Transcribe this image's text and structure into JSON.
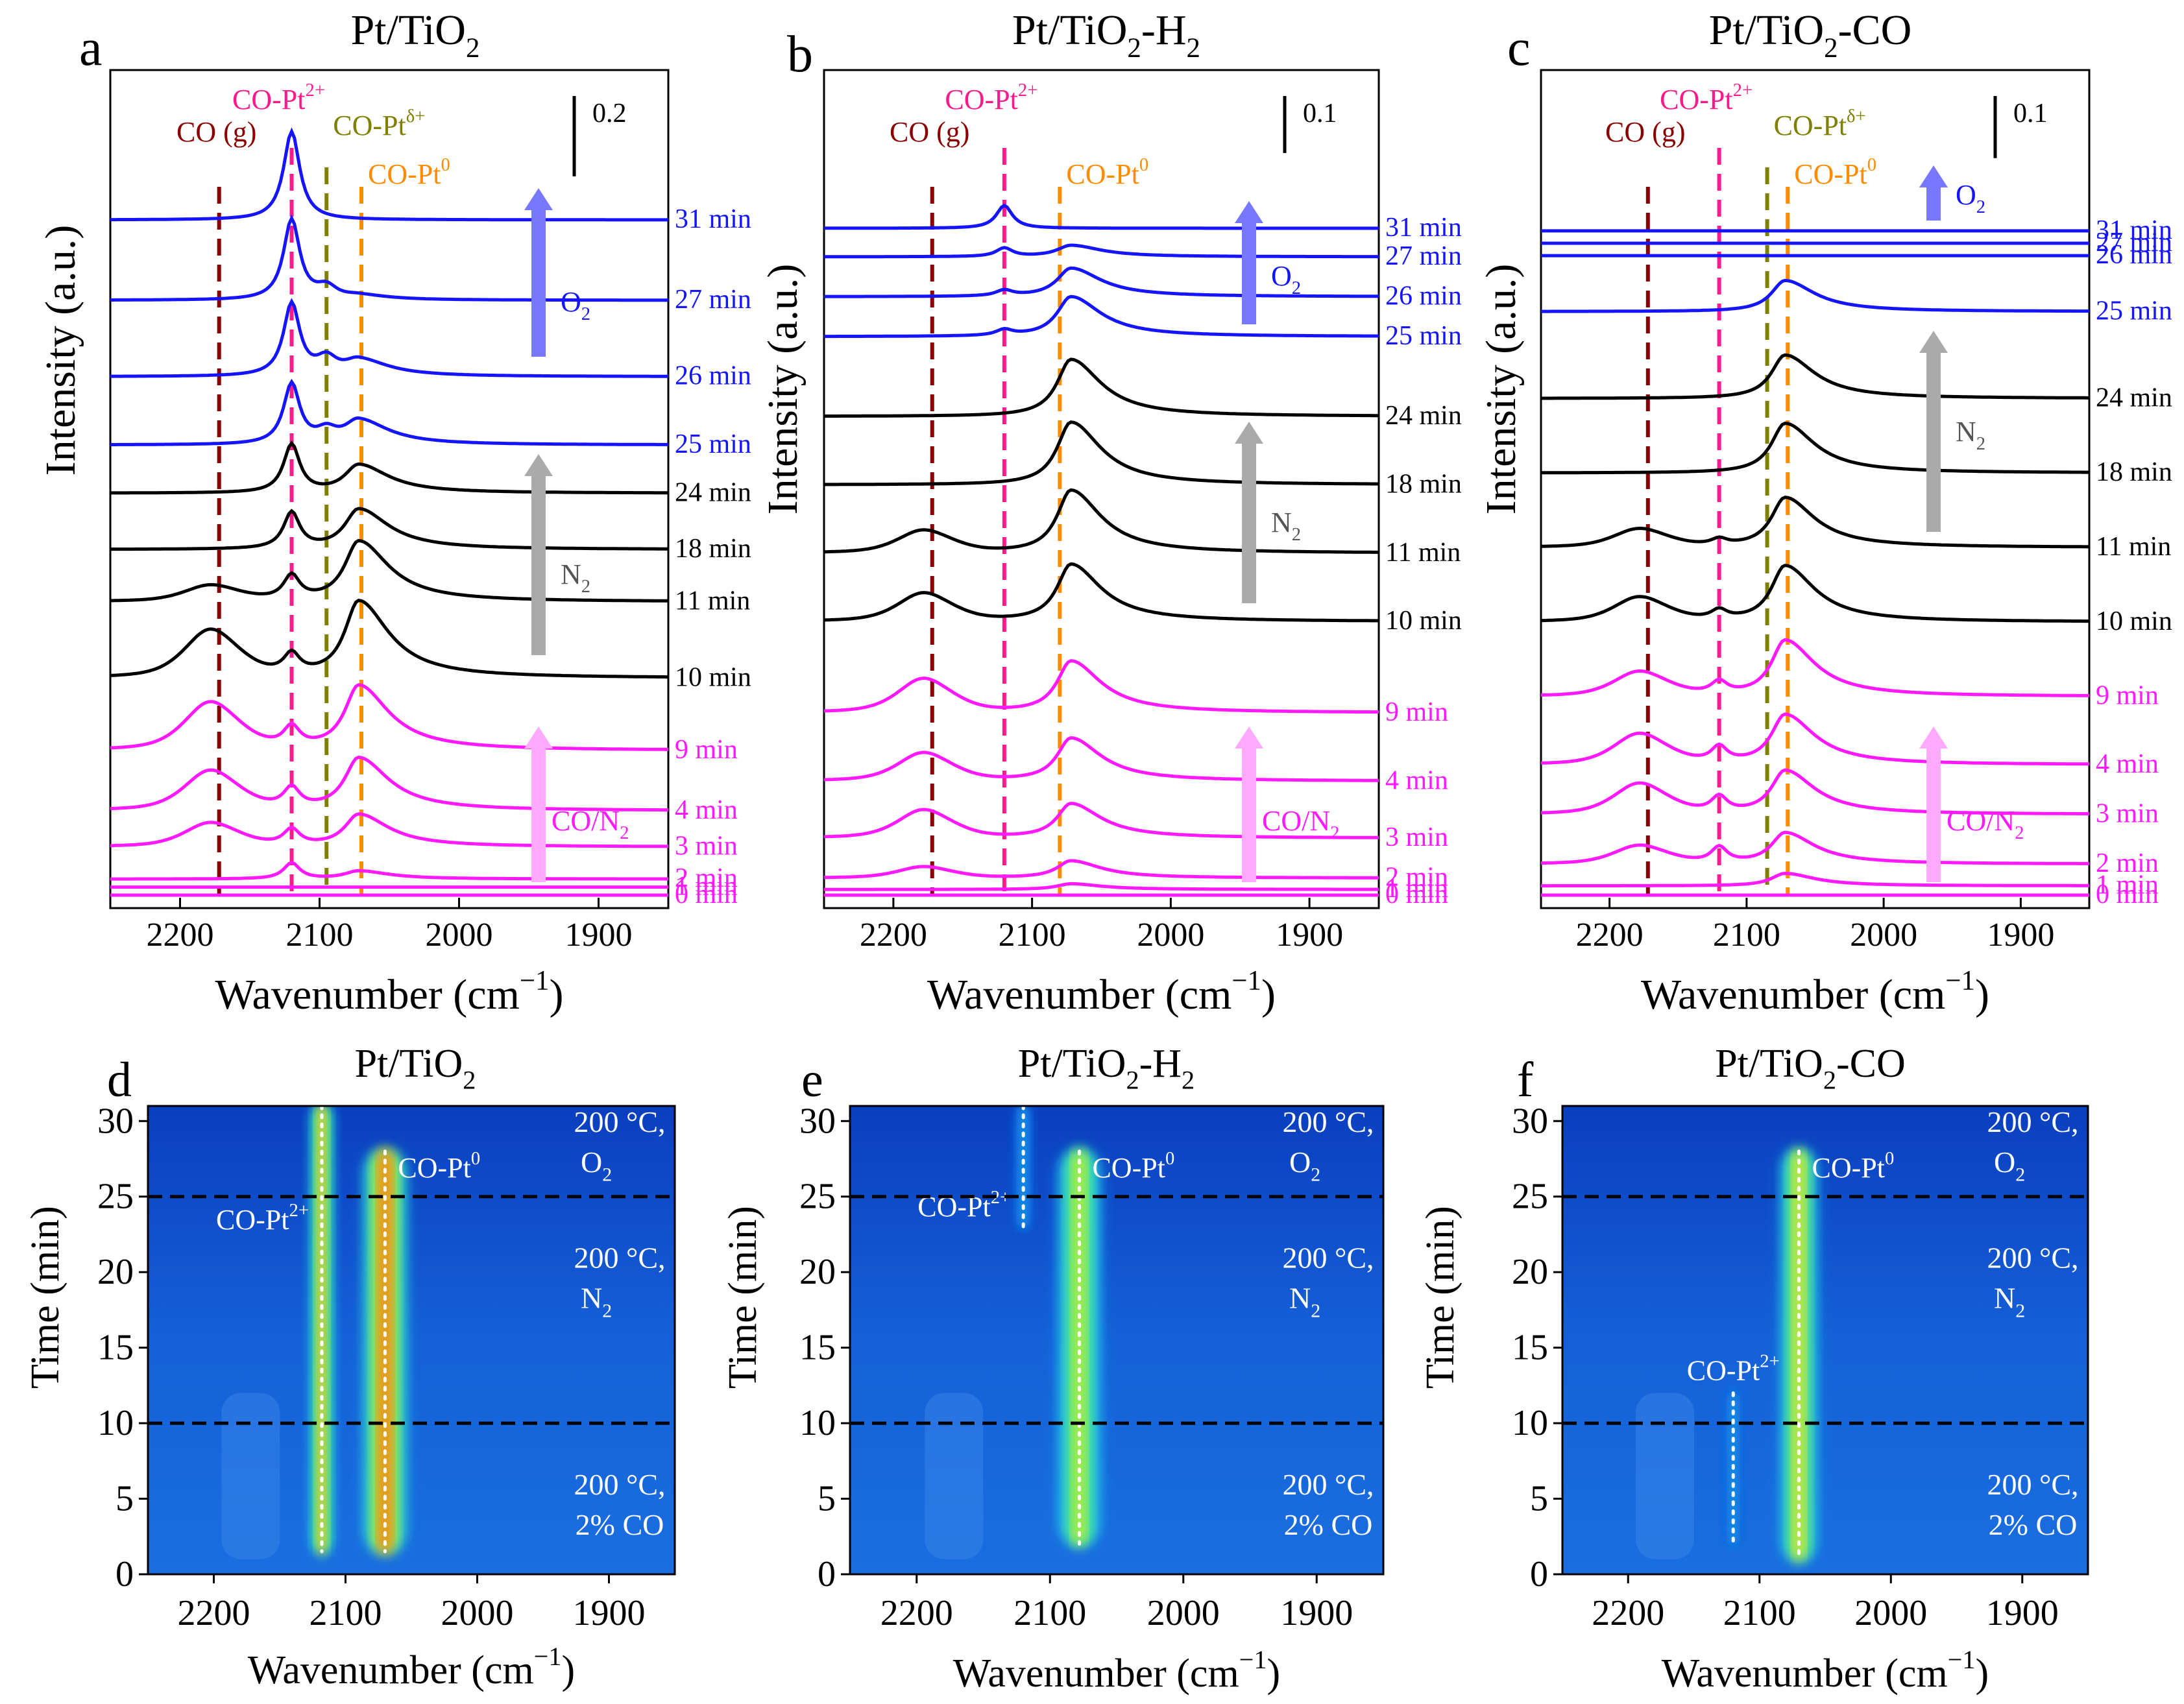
{
  "figure": {
    "xlabel_html": [
      "Wavenumber (cm",
      "−1",
      ")"
    ],
    "ylabel_top": "Intensity (a.u.)",
    "ylabel_bottom": "Time (min)"
  },
  "colors": {
    "co_n2": "#ff19ff",
    "n2": "#000000",
    "o2": "#1414ff",
    "co_gas": "#8b0000",
    "co_pt2": "#ff1a8c",
    "co_ptd": "#808000",
    "co_pt0": "#ff8c00",
    "arrow_co": "#ffaaff",
    "arrow_n2": "#aaaaaa",
    "arrow_o2": "#7777ff"
  },
  "chart_data": [
    {
      "type": "line",
      "panel": "a",
      "title": "Pt/TiO2",
      "xlabel": "Wavenumber (cm−1)",
      "ylabel": "Intensity (a.u.)",
      "xlim": [
        2250,
        1850
      ],
      "xticks": [
        2200,
        2100,
        2000,
        1900
      ],
      "scale_bar": "0.2",
      "scale_bar_value": 0.2,
      "markers": [
        {
          "label": "CO (g)",
          "x": 2172,
          "color": "#8b0000"
        },
        {
          "label": "CO-Pt2+",
          "x": 2120,
          "color": "#ff1a8c"
        },
        {
          "label": "CO-Ptδ+",
          "x": 2095,
          "color": "#808000"
        },
        {
          "label": "CO-Pt0",
          "x": 2070,
          "color": "#ff8c00"
        }
      ],
      "gas_arrows": [
        "CO/N2",
        "N2",
        "O2"
      ],
      "series": [
        {
          "name": "0 min",
          "offset": 0.0,
          "gas": "CO/N2",
          "peaks": {
            "g": 0.0,
            "p2": 0.0,
            "pd": 0.0,
            "p0": 0.0
          }
        },
        {
          "name": "1 min",
          "offset": 0.02,
          "gas": "CO/N2",
          "peaks": {
            "g": 0.0,
            "p2": 0.0,
            "pd": 0.0,
            "p0": 0.0
          }
        },
        {
          "name": "2 min",
          "offset": 0.04,
          "gas": "CO/N2",
          "peaks": {
            "g": 0.0,
            "p2": 0.04,
            "pd": 0.0,
            "p0": 0.02
          }
        },
        {
          "name": "3 min",
          "offset": 0.12,
          "gas": "CO/N2",
          "peaks": {
            "g": 0.03,
            "p2": 0.04,
            "pd": 0.0,
            "p0": 0.08
          }
        },
        {
          "name": "4 min",
          "offset": 0.21,
          "gas": "CO/N2",
          "peaks": {
            "g": 0.05,
            "p2": 0.05,
            "pd": 0.0,
            "p0": 0.13
          }
        },
        {
          "name": "9 min",
          "offset": 0.36,
          "gas": "CO/N2",
          "peaks": {
            "g": 0.06,
            "p2": 0.05,
            "pd": 0.0,
            "p0": 0.16
          }
        },
        {
          "name": "10 min",
          "offset": 0.54,
          "gas": "N2",
          "peaks": {
            "g": 0.06,
            "p2": 0.05,
            "pd": 0.0,
            "p0": 0.19
          }
        },
        {
          "name": "11 min",
          "offset": 0.73,
          "gas": "N2",
          "peaks": {
            "g": 0.02,
            "p2": 0.06,
            "pd": 0.0,
            "p0": 0.15
          }
        },
        {
          "name": "18 min",
          "offset": 0.86,
          "gas": "N2",
          "peaks": {
            "g": 0.0,
            "p2": 0.09,
            "pd": 0.0,
            "p0": 0.1
          }
        },
        {
          "name": "24 min",
          "offset": 1.0,
          "gas": "N2",
          "peaks": {
            "g": 0.0,
            "p2": 0.12,
            "pd": 0.0,
            "p0": 0.07
          }
        },
        {
          "name": "25 min",
          "offset": 1.12,
          "gas": "O2",
          "peaks": {
            "g": 0.0,
            "p2": 0.15,
            "pd": 0.03,
            "p0": 0.06
          }
        },
        {
          "name": "26 min",
          "offset": 1.29,
          "gas": "O2",
          "peaks": {
            "g": 0.0,
            "p2": 0.18,
            "pd": 0.04,
            "p0": 0.04
          }
        },
        {
          "name": "27 min",
          "offset": 1.48,
          "gas": "O2",
          "peaks": {
            "g": 0.0,
            "p2": 0.2,
            "pd": 0.03,
            "p0": 0.01
          }
        },
        {
          "name": "31 min",
          "offset": 1.68,
          "gas": "O2",
          "peaks": {
            "g": 0.0,
            "p2": 0.22,
            "pd": 0.0,
            "p0": 0.0
          }
        }
      ]
    },
    {
      "type": "line",
      "panel": "b",
      "title": "Pt/TiO2-H2",
      "xlabel": "Wavenumber (cm−1)",
      "ylabel": "Intensity (a.u.)",
      "xlim": [
        2250,
        1850
      ],
      "xticks": [
        2200,
        2100,
        2000,
        1900
      ],
      "scale_bar": "0.1",
      "scale_bar_value": 0.1,
      "markers": [
        {
          "label": "CO (g)",
          "x": 2172,
          "color": "#8b0000"
        },
        {
          "label": "CO-Pt2+",
          "x": 2120,
          "color": "#ff1a8c"
        },
        {
          "label": "CO-Pt0",
          "x": 2080,
          "color": "#ff8c00"
        }
      ],
      "gas_arrows": [
        "CO/N2",
        "N2",
        "O2"
      ],
      "series": [
        {
          "name": "0 min",
          "offset": 0.0,
          "gas": "CO/N2",
          "peaks": {
            "g": 0.0,
            "p2": 0.0,
            "pd": 0.0,
            "p0": 0.0
          }
        },
        {
          "name": "1 min",
          "offset": 0.01,
          "gas": "CO/N2",
          "peaks": {
            "g": 0.0,
            "p2": 0.0,
            "pd": 0.0,
            "p0": 0.01
          }
        },
        {
          "name": "2 min",
          "offset": 0.03,
          "gas": "CO/N2",
          "peaks": {
            "g": 0.01,
            "p2": 0.0,
            "pd": 0.0,
            "p0": 0.03
          }
        },
        {
          "name": "3 min",
          "offset": 0.1,
          "gas": "CO/N2",
          "peaks": {
            "g": 0.025,
            "p2": 0.0,
            "pd": 0.0,
            "p0": 0.06
          }
        },
        {
          "name": "4 min",
          "offset": 0.2,
          "gas": "CO/N2",
          "peaks": {
            "g": 0.025,
            "p2": 0.0,
            "pd": 0.0,
            "p0": 0.075
          }
        },
        {
          "name": "9 min",
          "offset": 0.32,
          "gas": "CO/N2",
          "peaks": {
            "g": 0.03,
            "p2": 0.0,
            "pd": 0.0,
            "p0": 0.09
          }
        },
        {
          "name": "10 min",
          "offset": 0.48,
          "gas": "N2",
          "peaks": {
            "g": 0.025,
            "p2": 0.0,
            "pd": 0.0,
            "p0": 0.1
          }
        },
        {
          "name": "11 min",
          "offset": 0.6,
          "gas": "N2",
          "peaks": {
            "g": 0.02,
            "p2": 0.0,
            "pd": 0.0,
            "p0": 0.11
          }
        },
        {
          "name": "18 min",
          "offset": 0.72,
          "gas": "N2",
          "peaks": {
            "g": 0.0,
            "p2": 0.0,
            "pd": 0.0,
            "p0": 0.11
          }
        },
        {
          "name": "24 min",
          "offset": 0.84,
          "gas": "N2",
          "peaks": {
            "g": 0.0,
            "p2": 0.0,
            "pd": 0.0,
            "p0": 0.1
          }
        },
        {
          "name": "25 min",
          "offset": 0.98,
          "gas": "O2",
          "peaks": {
            "g": 0.0,
            "p2": 0.01,
            "pd": 0.0,
            "p0": 0.07
          }
        },
        {
          "name": "26 min",
          "offset": 1.05,
          "gas": "O2",
          "peaks": {
            "g": 0.0,
            "p2": 0.01,
            "pd": 0.0,
            "p0": 0.05
          }
        },
        {
          "name": "27 min",
          "offset": 1.12,
          "gas": "O2",
          "peaks": {
            "g": 0.0,
            "p2": 0.015,
            "pd": 0.0,
            "p0": 0.02
          }
        },
        {
          "name": "31 min",
          "offset": 1.17,
          "gas": "O2",
          "peaks": {
            "g": 0.0,
            "p2": 0.04,
            "pd": 0.0,
            "p0": 0.0
          }
        }
      ]
    },
    {
      "type": "line",
      "panel": "c",
      "title": "Pt/TiO2-CO",
      "xlabel": "Wavenumber (cm−1)",
      "ylabel": "Intensity (a.u.)",
      "xlim": [
        2250,
        1850
      ],
      "xticks": [
        2200,
        2100,
        2000,
        1900
      ],
      "scale_bar": "0.1",
      "scale_bar_value": 0.1,
      "markers": [
        {
          "label": "CO (g)",
          "x": 2172,
          "color": "#8b0000"
        },
        {
          "label": "CO-Pt2+",
          "x": 2120,
          "color": "#ff1a8c"
        },
        {
          "label": "CO-Ptδ+",
          "x": 2085,
          "color": "#808000"
        },
        {
          "label": "CO-Pt0",
          "x": 2070,
          "color": "#ff8c00"
        }
      ],
      "gas_arrows": [
        "CO/N2",
        "N2",
        "O2"
      ],
      "series": [
        {
          "name": "0 min",
          "offset": 0.0,
          "gas": "CO/N2",
          "peaks": {
            "g": 0.0,
            "p2": 0.0,
            "pd": 0.0,
            "p0": 0.0
          }
        },
        {
          "name": "1 min",
          "offset": 0.015,
          "gas": "CO/N2",
          "peaks": {
            "g": 0.0,
            "p2": 0.0,
            "pd": 0.0,
            "p0": 0.02
          }
        },
        {
          "name": "2 min",
          "offset": 0.05,
          "gas": "CO/N2",
          "peaks": {
            "g": 0.015,
            "p2": 0.025,
            "pd": 0.0,
            "p0": 0.05
          }
        },
        {
          "name": "3 min",
          "offset": 0.13,
          "gas": "CO/N2",
          "peaks": {
            "g": 0.025,
            "p2": 0.025,
            "pd": 0.0,
            "p0": 0.07
          }
        },
        {
          "name": "4 min",
          "offset": 0.21,
          "gas": "CO/N2",
          "peaks": {
            "g": 0.025,
            "p2": 0.025,
            "pd": 0.0,
            "p0": 0.08
          }
        },
        {
          "name": "9 min",
          "offset": 0.32,
          "gas": "CO/N2",
          "peaks": {
            "g": 0.02,
            "p2": 0.02,
            "pd": 0.0,
            "p0": 0.09
          }
        },
        {
          "name": "10 min",
          "offset": 0.44,
          "gas": "N2",
          "peaks": {
            "g": 0.02,
            "p2": 0.015,
            "pd": 0.0,
            "p0": 0.09
          }
        },
        {
          "name": "11 min",
          "offset": 0.56,
          "gas": "N2",
          "peaks": {
            "g": 0.015,
            "p2": 0.01,
            "pd": 0.0,
            "p0": 0.08
          }
        },
        {
          "name": "18 min",
          "offset": 0.68,
          "gas": "N2",
          "peaks": {
            "g": 0.0,
            "p2": 0.0,
            "pd": 0.0,
            "p0": 0.08
          }
        },
        {
          "name": "24 min",
          "offset": 0.8,
          "gas": "N2",
          "peaks": {
            "g": 0.0,
            "p2": 0.0,
            "pd": 0.0,
            "p0": 0.07
          }
        },
        {
          "name": "25 min",
          "offset": 0.94,
          "gas": "O2",
          "peaks": {
            "g": 0.0,
            "p2": 0.0,
            "pd": 0.0,
            "p0": 0.05
          }
        },
        {
          "name": "26 min",
          "offset": 1.03,
          "gas": "O2",
          "peaks": {
            "g": 0.0,
            "p2": 0.0,
            "pd": 0.0,
            "p0": 0.0
          }
        },
        {
          "name": "27 min",
          "offset": 1.05,
          "gas": "O2",
          "peaks": {
            "g": 0.0,
            "p2": 0.0,
            "pd": 0.0,
            "p0": 0.0
          }
        },
        {
          "name": "31 min",
          "offset": 1.07,
          "gas": "O2",
          "peaks": {
            "g": 0.0,
            "p2": 0.0,
            "pd": 0.0,
            "p0": 0.0
          }
        }
      ]
    },
    {
      "type": "heatmap",
      "panel": "d",
      "title": "Pt/TiO2",
      "xlabel": "Wavenumber (cm−1)",
      "ylabel": "Time (min)",
      "xlim": [
        2250,
        1850
      ],
      "ylim": [
        0,
        31
      ],
      "xticks": [
        2200,
        2100,
        2000,
        1900
      ],
      "yticks": [
        0,
        5,
        10,
        15,
        20,
        25,
        30
      ],
      "boundaries_min": [
        10,
        25
      ],
      "stripes": [
        {
          "label": "CO-Pt2+",
          "x": 2118,
          "t_start": 1.5,
          "t_end": 31,
          "intensity": 0.9,
          "width": 7
        },
        {
          "label": "CO-Pt0",
          "x": 2070,
          "t_start": 1.5,
          "t_end": 28,
          "intensity": 0.95,
          "width": 14
        }
      ],
      "zone_labels": [
        {
          "line1": "200 °C,",
          "line2": "2% CO",
          "t": 4
        },
        {
          "line1": "200 °C,",
          "line2": "N2",
          "t": 19
        },
        {
          "line1": "200 °C,",
          "line2": "O2",
          "t": 28
        }
      ]
    },
    {
      "type": "heatmap",
      "panel": "e",
      "title": "Pt/TiO2-H2",
      "xlabel": "Wavenumber (cm−1)",
      "ylabel": "Time (min)",
      "xlim": [
        2250,
        1850
      ],
      "ylim": [
        0,
        31
      ],
      "xticks": [
        2200,
        2100,
        2000,
        1900
      ],
      "yticks": [
        0,
        5,
        10,
        15,
        20,
        25,
        30
      ],
      "boundaries_min": [
        10,
        25
      ],
      "stripes": [
        {
          "label": "CO-Pt2+",
          "x": 2120,
          "t_start": 23,
          "t_end": 31,
          "intensity": 0.3,
          "width": 5
        },
        {
          "label": "CO-Pt0",
          "x": 2078,
          "t_start": 2,
          "t_end": 28,
          "intensity": 0.75,
          "width": 14
        }
      ],
      "zone_labels": [
        {
          "line1": "200 °C,",
          "line2": "2% CO",
          "t": 4
        },
        {
          "line1": "200 °C,",
          "line2": "N2",
          "t": 19
        },
        {
          "line1": "200 °C,",
          "line2": "O2",
          "t": 28
        }
      ]
    },
    {
      "type": "heatmap",
      "panel": "f",
      "title": "Pt/TiO2-CO",
      "xlabel": "Wavenumber (cm−1)",
      "ylabel": "Time (min)",
      "xlim": [
        2250,
        1850
      ],
      "ylim": [
        0,
        31
      ],
      "xticks": [
        2200,
        2100,
        2000,
        1900
      ],
      "yticks": [
        0,
        5,
        10,
        15,
        20,
        25,
        30
      ],
      "boundaries_min": [
        10,
        25
      ],
      "stripes": [
        {
          "label": "CO-Pt2+",
          "x": 2120,
          "t_start": 2,
          "t_end": 12,
          "intensity": 0.3,
          "width": 5
        },
        {
          "label": "CO-Pt0",
          "x": 2070,
          "t_start": 1,
          "t_end": 28,
          "intensity": 0.8,
          "width": 12
        }
      ],
      "zone_labels": [
        {
          "line1": "200 °C,",
          "line2": "2% CO",
          "t": 4
        },
        {
          "line1": "200 °C,",
          "line2": "N2",
          "t": 19
        },
        {
          "line1": "200 °C,",
          "line2": "O2",
          "t": 28
        }
      ]
    }
  ]
}
